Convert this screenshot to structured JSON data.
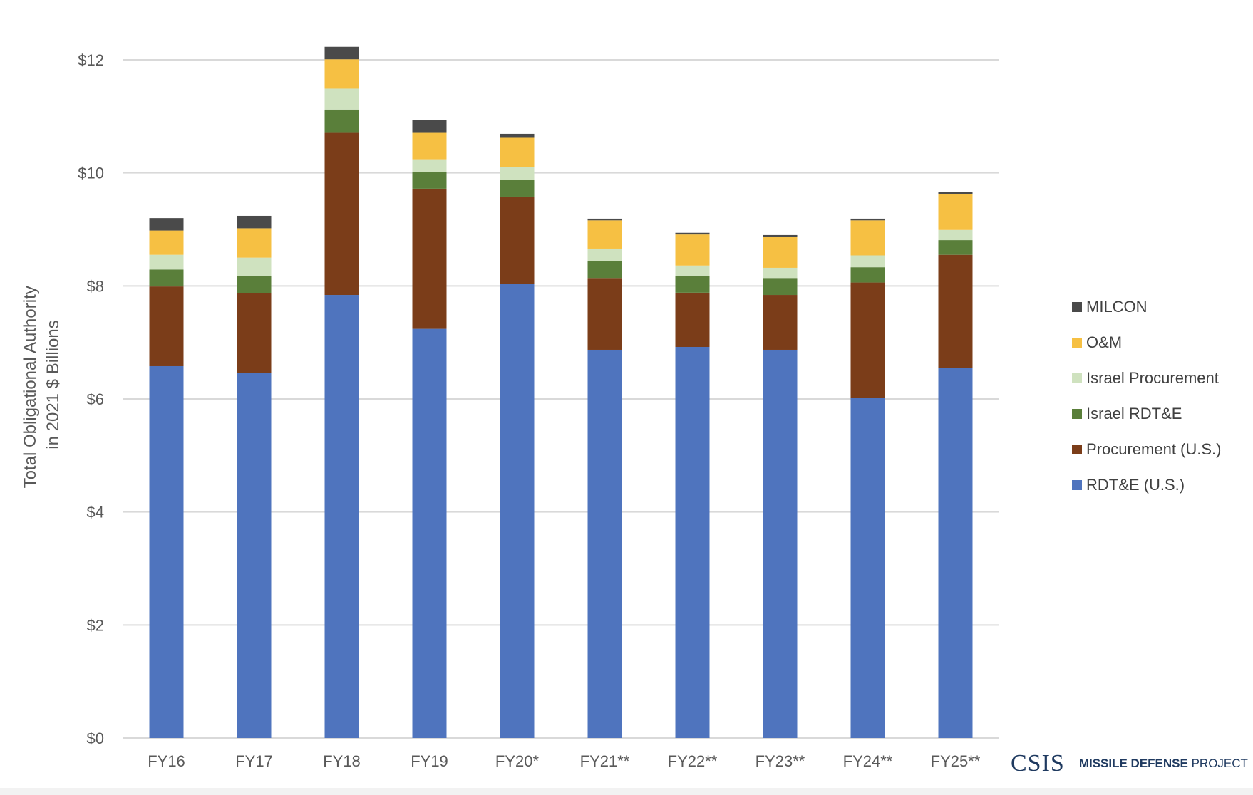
{
  "chart_data": {
    "type": "bar",
    "stacked": true,
    "title": "",
    "xlabel": "",
    "ylabel": "Total Obligational Authority in 2021 $ Billions",
    "ylabel_lines": [
      "Total Obligational Authority",
      "in 2021 $ Billions"
    ],
    "ylim": [
      0,
      12
    ],
    "yticks": [
      0,
      2,
      4,
      6,
      8,
      10,
      12
    ],
    "ytick_labels": [
      "$0",
      "$2",
      "$4",
      "$6",
      "$8",
      "$10",
      "$12"
    ],
    "grid": true,
    "legend_position": "right",
    "categories": [
      "FY16",
      "FY17",
      "FY18",
      "FY19",
      "FY20*",
      "FY21**",
      "FY22**",
      "FY23**",
      "FY24**",
      "FY25**"
    ],
    "series": [
      {
        "name": "RDT&E (U.S.)",
        "color": "#4f74be",
        "values": [
          6.58,
          6.46,
          7.84,
          7.24,
          8.03,
          6.87,
          6.92,
          6.87,
          6.02,
          6.55
        ]
      },
      {
        "name": "Procurement (U.S.)",
        "color": "#7b3d19",
        "values": [
          1.41,
          1.41,
          2.88,
          2.48,
          1.55,
          1.27,
          0.96,
          0.97,
          2.04,
          2.0
        ]
      },
      {
        "name": "Israel RDT&E",
        "color": "#5a7f3a",
        "values": [
          0.3,
          0.3,
          0.4,
          0.3,
          0.3,
          0.3,
          0.3,
          0.3,
          0.27,
          0.26
        ]
      },
      {
        "name": "Israel Procurement",
        "color": "#cfe2bf",
        "values": [
          0.26,
          0.33,
          0.37,
          0.22,
          0.22,
          0.22,
          0.18,
          0.18,
          0.21,
          0.18
        ]
      },
      {
        "name": "O&M",
        "color": "#f6c043",
        "values": [
          0.43,
          0.52,
          0.52,
          0.48,
          0.52,
          0.5,
          0.55,
          0.55,
          0.62,
          0.63
        ]
      },
      {
        "name": "MILCON",
        "color": "#4a4a4a",
        "values": [
          0.22,
          0.22,
          0.22,
          0.21,
          0.07,
          0.03,
          0.03,
          0.03,
          0.03,
          0.04
        ]
      }
    ]
  },
  "logo": {
    "csis": "CSIS",
    "mdp_bold": "MISSILE DEFENSE",
    "mdp_rest": "PROJECT"
  },
  "colors": {
    "axis_text": "#595959",
    "grid": "#d9d9d9",
    "brand": "#1f3a60"
  }
}
